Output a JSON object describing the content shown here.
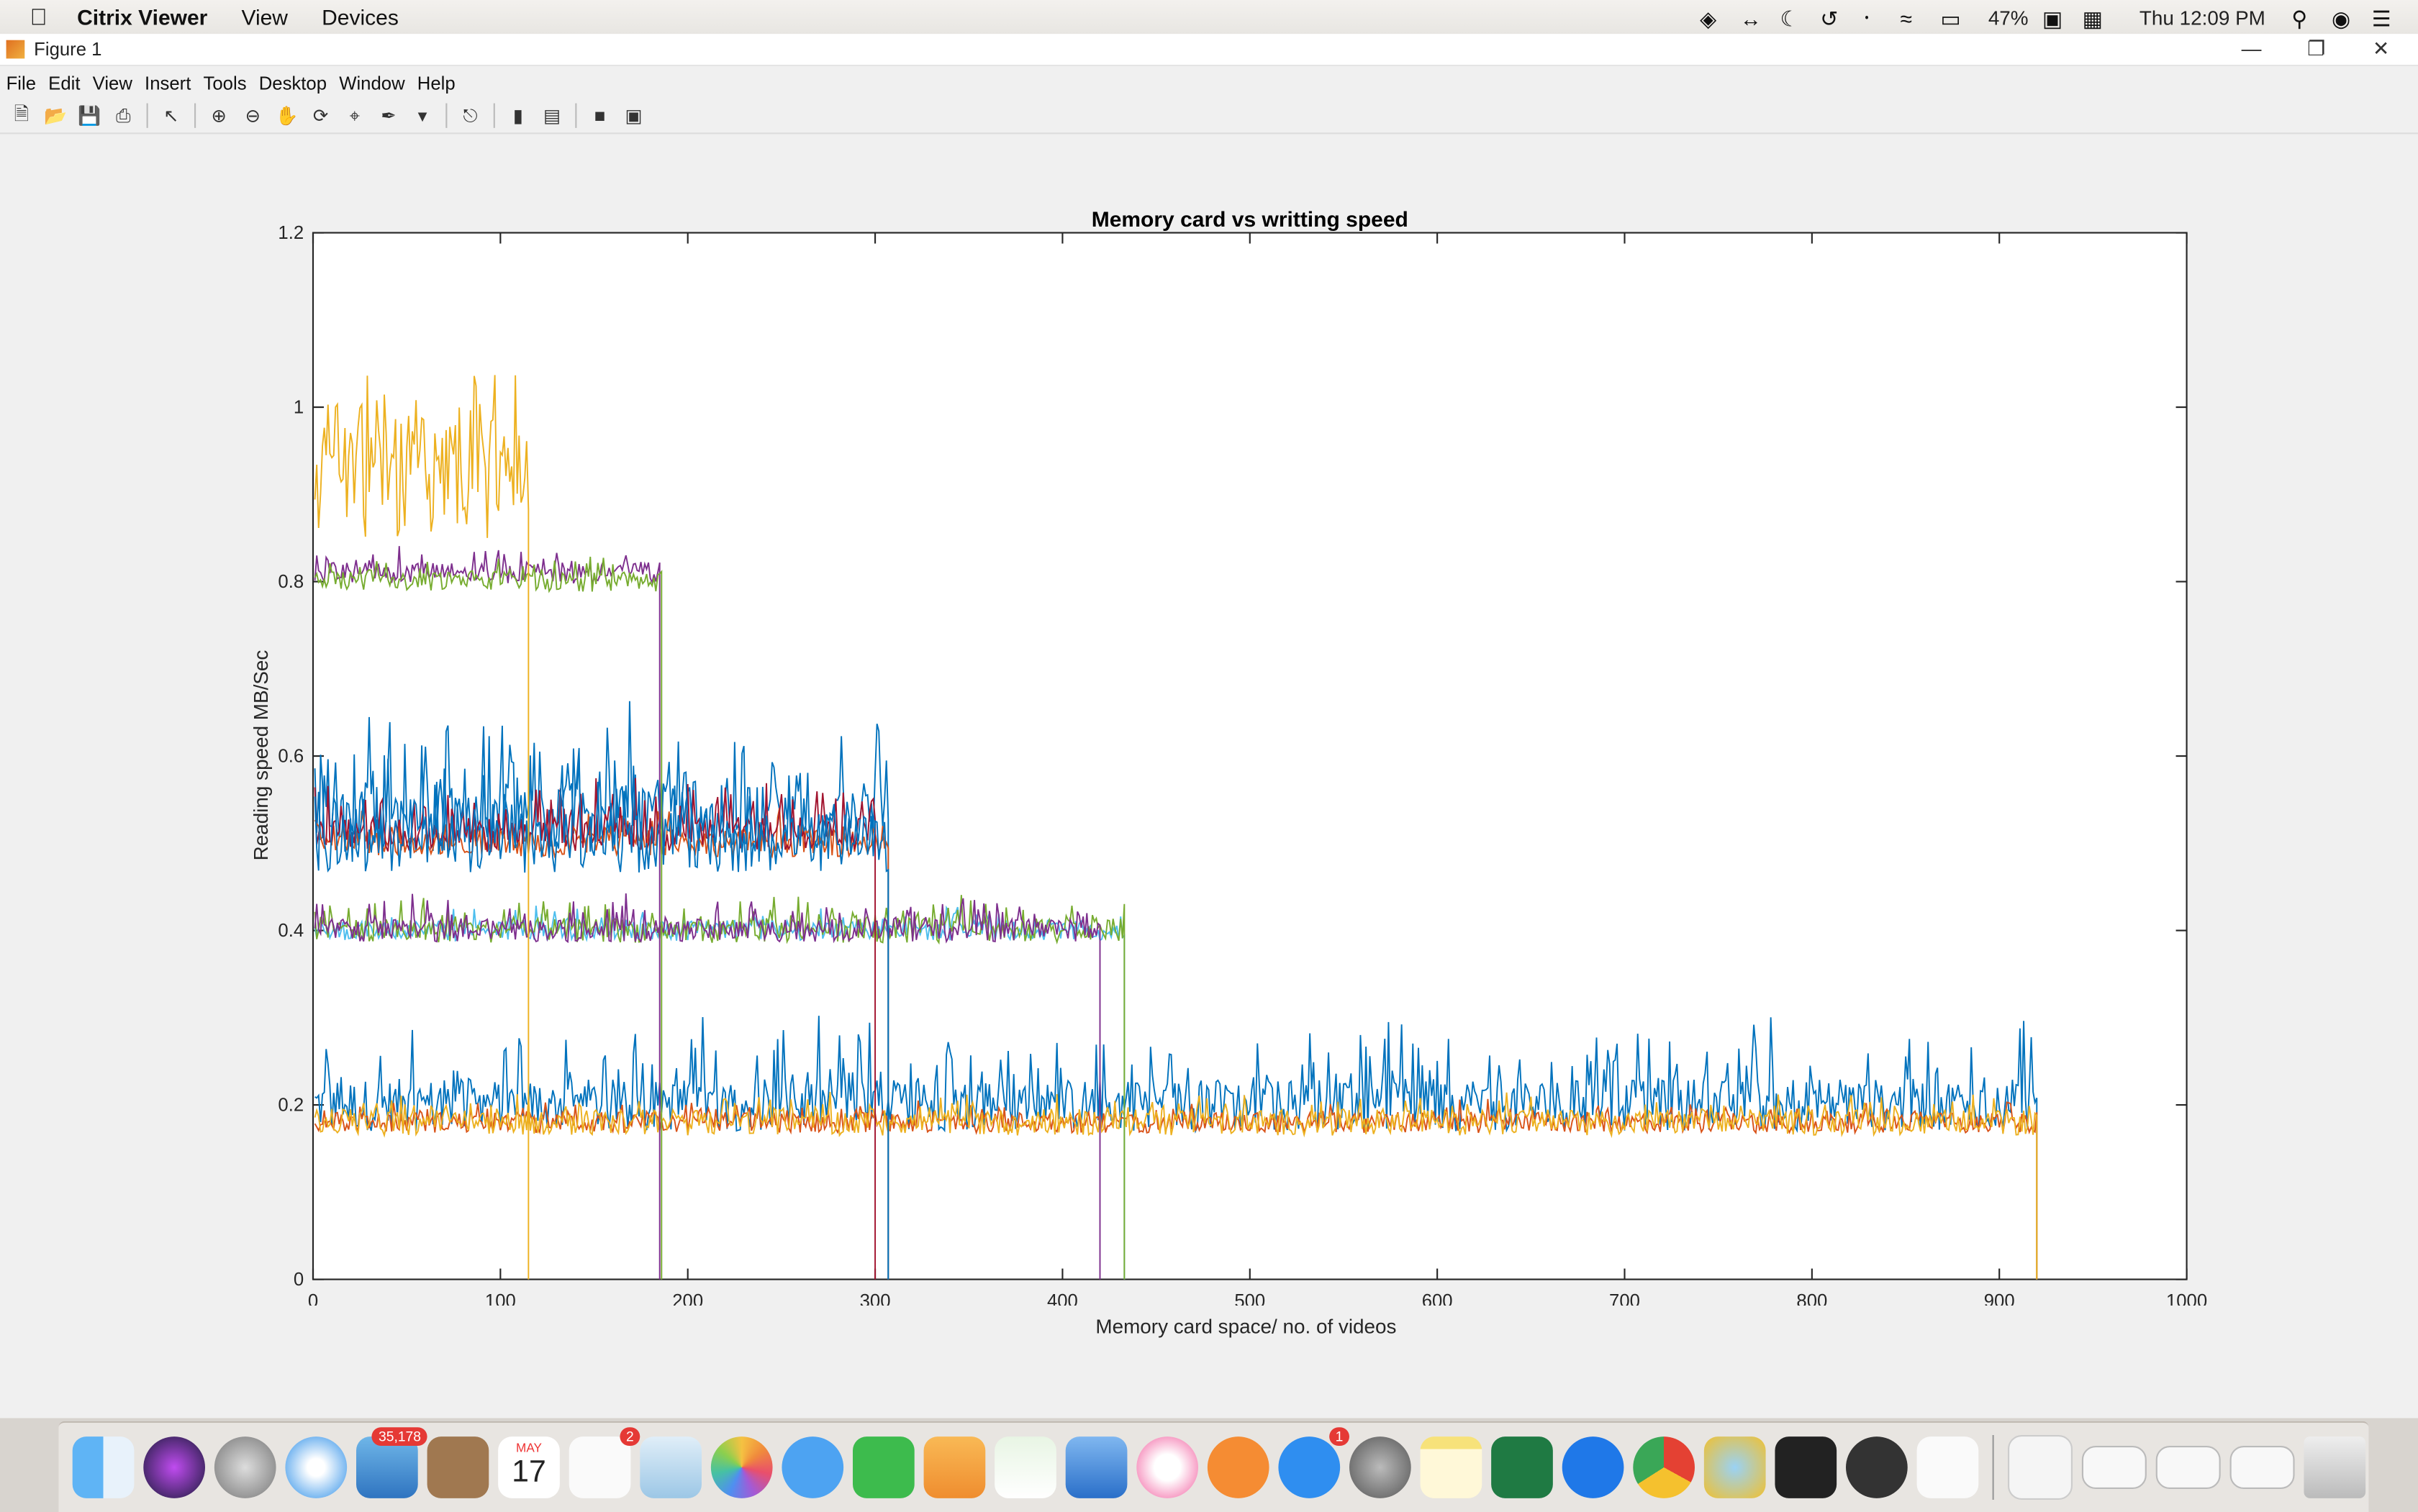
{
  "menubar": {
    "app_name": "Citrix Viewer",
    "items": [
      "View",
      "Devices"
    ],
    "battery": "47%",
    "clock": "Thu 12:09 PM"
  },
  "window": {
    "title": "Figure 1",
    "menu": [
      "File",
      "Edit",
      "View",
      "Insert",
      "Tools",
      "Desktop",
      "Window",
      "Help"
    ]
  },
  "toolbar_icons": [
    "new-figure-icon",
    "open-icon",
    "save-icon",
    "print-icon",
    "pointer-icon",
    "zoom-in-icon",
    "zoom-out-icon",
    "pan-icon",
    "rotate-icon",
    "data-cursor-icon",
    "brush-icon",
    "link-icon",
    "colorbar-icon",
    "legend-icon",
    "hide-tools-icon",
    "show-tools-icon"
  ],
  "chart_data": {
    "type": "line",
    "title": "Memory card vs writting speed",
    "xlabel": "Memory card space/ no. of videos",
    "ylabel": "Reading speed MB/Sec",
    "xlim": [
      0,
      1000
    ],
    "ylim": [
      0,
      1.2
    ],
    "xticks": [
      "0",
      "100",
      "200",
      "300",
      "400",
      "500",
      "600",
      "700",
      "800",
      "900",
      "1000"
    ],
    "yticks": [
      "0",
      "0.2",
      "0.4",
      "0.6",
      "0.8",
      "1",
      "1.2"
    ],
    "grid": false,
    "series": [
      {
        "color": "#0072BD",
        "end": 920,
        "base": 0.2,
        "noise": 0.03,
        "spike": 0.08
      },
      {
        "color": "#D95319",
        "end": 920,
        "base": 0.18,
        "noise": 0.012,
        "spike": 0.015
      },
      {
        "color": "#EDB120",
        "end": 920,
        "base": 0.18,
        "noise": 0.015,
        "spike": 0.02
      },
      {
        "color": "#4DBEEE",
        "end": 433,
        "base": 0.4,
        "noise": 0.012,
        "spike": 0.02
      },
      {
        "color": "#77AC30",
        "end": 433,
        "base": 0.4,
        "noise": 0.014,
        "spike": 0.03
      },
      {
        "color": "#7E2F8E",
        "end": 420,
        "base": 0.4,
        "noise": 0.013,
        "spike": 0.03
      },
      {
        "color": "#0072BD",
        "end": 307,
        "base": 0.53,
        "noise": 0.04,
        "spike": 0.1
      },
      {
        "color": "#D95319",
        "end": 307,
        "base": 0.5,
        "noise": 0.015,
        "spike": 0.03
      },
      {
        "color": "#A2142F",
        "end": 300,
        "base": 0.51,
        "noise": 0.02,
        "spike": 0.05
      },
      {
        "color": "#0072BD",
        "end": 307,
        "base": 0.5,
        "noise": 0.035,
        "spike": 0.1
      },
      {
        "color": "#7E2F8E",
        "end": 185,
        "base": 0.81,
        "noise": 0.012,
        "spike": 0.02
      },
      {
        "color": "#77AC30",
        "end": 186,
        "base": 0.8,
        "noise": 0.012,
        "spike": 0.02
      },
      {
        "color": "#EDB120",
        "end": 115,
        "base": 0.93,
        "noise": 0.08,
        "spike": 0.06
      }
    ]
  },
  "dock": {
    "items": [
      "finder-icon",
      "siri-icon",
      "launchpad-icon",
      "safari-icon",
      "mail-icon",
      "contacts-icon",
      "calendar-icon",
      "reminders-icon",
      "preview-icon",
      "photos-icon",
      "messages-icon",
      "facetime-icon",
      "pages-icon",
      "numbers-icon",
      "keynote-icon",
      "itunes-icon",
      "ibooks-icon",
      "appstore-icon",
      "system-preferences-icon",
      "notes-icon",
      "excel-icon",
      "teamviewer-icon",
      "chrome-icon",
      "tunnelblick-icon",
      "terminal-icon",
      "activity-icon",
      "textedit-icon"
    ],
    "mail_badge": "35,178",
    "reminders_badge": "2",
    "appstore_badge": "1",
    "calendar_month": "MAY",
    "calendar_day": "17"
  }
}
